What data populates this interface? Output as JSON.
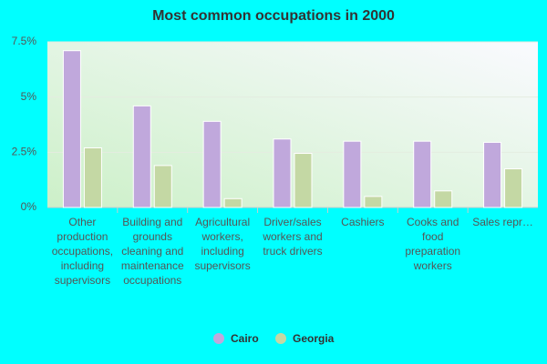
{
  "chart_data": {
    "type": "bar",
    "title": "Most common occupations in 2000",
    "categories": [
      "Other production occupations, including supervisors",
      "Building and grounds cleaning and maintenance occupations",
      "Agricultural workers, including supervisors",
      "Driver/sales workers and truck drivers",
      "Cashiers",
      "Cooks and food preparation workers",
      "Sales repr…"
    ],
    "series": [
      {
        "name": "Cairo",
        "color": "#c0a8dc",
        "values": [
          7.1,
          4.6,
          3.9,
          3.1,
          3.0,
          3.0,
          2.95
        ]
      },
      {
        "name": "Georgia",
        "color": "#c4d8a4",
        "values": [
          2.7,
          1.9,
          0.4,
          2.45,
          0.5,
          0.75,
          1.75
        ]
      }
    ],
    "ylim": [
      0,
      7.5
    ],
    "yticks": [
      {
        "value": 0,
        "label": "0%"
      },
      {
        "value": 2.5,
        "label": "2.5%"
      },
      {
        "value": 5,
        "label": "5%"
      },
      {
        "value": 7.5,
        "label": "7.5%"
      }
    ],
    "grid": true,
    "legend": "bottom"
  }
}
